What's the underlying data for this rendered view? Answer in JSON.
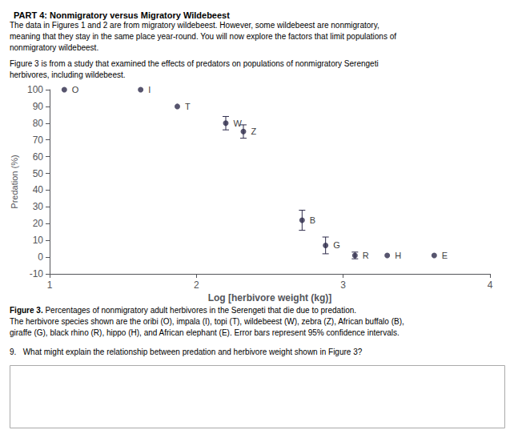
{
  "chart_data": {
    "type": "scatter",
    "title": "PART 4: Nonmigratory versus Migratory Wildebeest",
    "subtitle": [
      "The data in Figures 1 and 2 are from migratory wildebeest. However, some wildebeest are nonmigratory,",
      "meaning that they stay in the same place year-round. You will now explore the factors that limit populations of",
      "nonmigratory wildebeest.",
      "Figure 3 is from a study that examined the effects of predators on populations of nonmigratory Serengeti",
      "herbivores, including wildebeest."
    ],
    "caption_label": "Figure 3.",
    "caption": [
      "Percentages of nonmigratory adult herbivores in the Serengeti that die due to predation.",
      "The herbivore species shown are the oribi (O), impala (I), topi (T), wildebeest (W), zebra (Z), African buffalo (B),",
      "giraffe (G), black rhino (R), hippo (H), and African elephant (E). Error bars represent 95% confidence intervals."
    ],
    "question": "9.   What might explain the relationship between predation and herbivore weight shown in Figure 3?",
    "labels": [
      "O",
      "I",
      "T",
      "W",
      "Z",
      "B",
      "G",
      "R",
      "H",
      "E"
    ],
    "x": [
      1.1,
      1.62,
      1.87,
      2.2,
      2.32,
      2.72,
      2.88,
      3.08,
      3.3,
      3.62
    ],
    "values": [
      100,
      100,
      90,
      80,
      75,
      22,
      7,
      1,
      1,
      1
    ],
    "error_up": [
      0,
      0,
      0,
      4,
      4,
      6,
      5,
      2,
      0,
      0
    ],
    "error_down": [
      0,
      0,
      0,
      4,
      4,
      6,
      5,
      2,
      0,
      0
    ],
    "color": "#2d2a4a",
    "marker": "circle",
    "xlabel": "Log [herbivore weight (kg)]",
    "ylabel": "Predation (%)",
    "xlim": [
      1,
      4
    ],
    "xticks": [
      1,
      2,
      3,
      4
    ],
    "ylim": [
      -10,
      100
    ],
    "yticks": [
      -10,
      0,
      10,
      20,
      30,
      40,
      50,
      60,
      70,
      80,
      90,
      100
    ],
    "grid": false
  }
}
